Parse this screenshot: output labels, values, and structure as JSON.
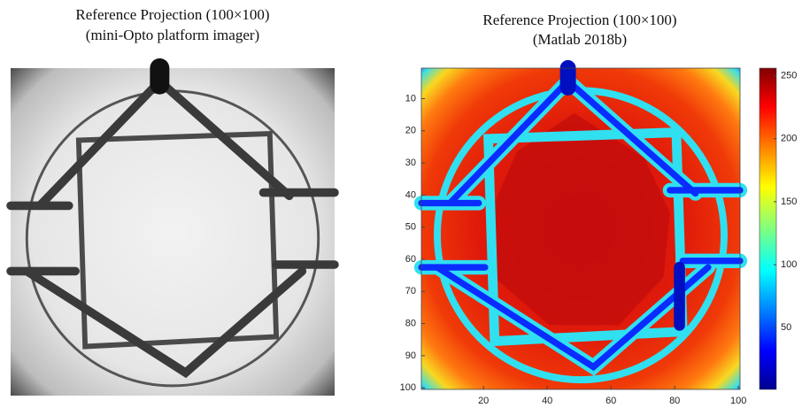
{
  "left": {
    "title": "Reference Projection (100×100)",
    "subtitle": "(mini-Opto platform imager)"
  },
  "right": {
    "title": "Reference Projection (100×100)",
    "subtitle": "(Matlab 2018b)",
    "xlim": [
      0.5,
      100.5
    ],
    "ylim": [
      0.5,
      100.5
    ],
    "xticks": [
      20,
      40,
      60,
      80,
      100
    ],
    "yticks": [
      10,
      20,
      30,
      40,
      50,
      60,
      70,
      80,
      90,
      100
    ],
    "colorbar": {
      "lim": [
        1,
        256
      ],
      "ticks": [
        50,
        100,
        150,
        200,
        250
      ]
    }
  }
}
